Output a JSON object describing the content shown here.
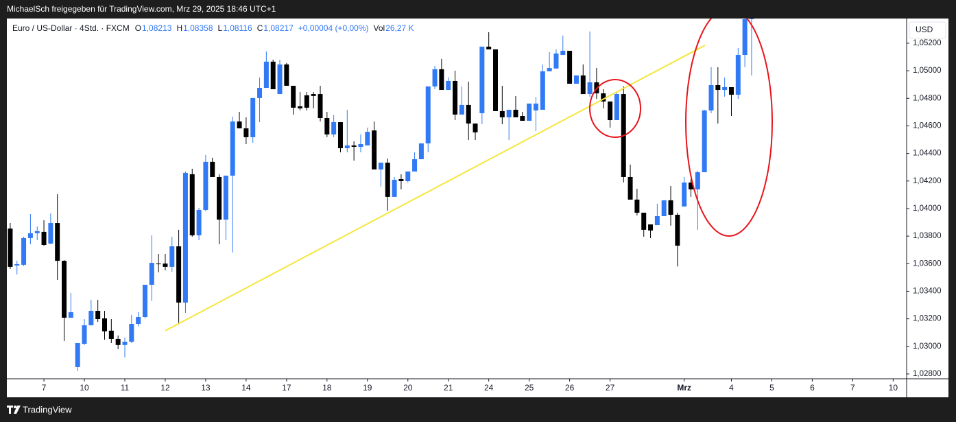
{
  "header": {
    "text": "MichaelSch freigegeben für TradingView.com, Mrz 29, 2025 18:46 UTC+1"
  },
  "legend": {
    "symbol": "Euro / US-Dollar · 4Std. · FXCM",
    "items": [
      {
        "label": "O",
        "value": "1,08213"
      },
      {
        "label": "H",
        "value": "1,08358"
      },
      {
        "label": "L",
        "value": "1,08116"
      },
      {
        "label": "C",
        "value": "1,08217"
      },
      {
        "label": "",
        "value": "+0,00004 (+0,00%)"
      },
      {
        "label": "Vol",
        "value": "26,27 K"
      }
    ]
  },
  "currency": "USD",
  "footer": {
    "brand": "TradingView"
  },
  "chart_data": {
    "type": "candlestick",
    "up_color": "#3179f5",
    "down_color": "#000000",
    "xlim": [
      -0.5,
      133
    ],
    "ylim": [
      1.02765,
      1.05379
    ],
    "xticks": [
      {
        "value": 5,
        "label": "7"
      },
      {
        "value": 11,
        "label": "10"
      },
      {
        "value": 17,
        "label": "11"
      },
      {
        "value": 23,
        "label": "12"
      },
      {
        "value": 29,
        "label": "13"
      },
      {
        "value": 35,
        "label": "14"
      },
      {
        "value": 41,
        "label": "17"
      },
      {
        "value": 47,
        "label": "18"
      },
      {
        "value": 53,
        "label": "19"
      },
      {
        "value": 59,
        "label": "20"
      },
      {
        "value": 65,
        "label": "21"
      },
      {
        "value": 71,
        "label": "24"
      },
      {
        "value": 77,
        "label": "25"
      },
      {
        "value": 83,
        "label": "26"
      },
      {
        "value": 89,
        "label": "27"
      },
      {
        "value": 100,
        "label": "Mrz"
      },
      {
        "value": 107,
        "label": "4"
      },
      {
        "value": 113,
        "label": "5"
      },
      {
        "value": 119,
        "label": "6"
      },
      {
        "value": 125,
        "label": "7"
      },
      {
        "value": 131,
        "label": "10"
      }
    ],
    "yticks": [
      {
        "value": 1.028,
        "label": "1,02800"
      },
      {
        "value": 1.03,
        "label": "1,03000"
      },
      {
        "value": 1.032,
        "label": "1,03200"
      },
      {
        "value": 1.034,
        "label": "1,03400"
      },
      {
        "value": 1.036,
        "label": "1,03600"
      },
      {
        "value": 1.038,
        "label": "1,03800"
      },
      {
        "value": 1.04,
        "label": "1,04000"
      },
      {
        "value": 1.042,
        "label": "1,04200"
      },
      {
        "value": 1.044,
        "label": "1,04400"
      },
      {
        "value": 1.046,
        "label": "1,04600"
      },
      {
        "value": 1.048,
        "label": "1,04800"
      },
      {
        "value": 1.05,
        "label": "1,05000"
      },
      {
        "value": 1.052,
        "label": "1,05200"
      }
    ],
    "open": [
      1.03855,
      1.03587,
      1.03592,
      1.03786,
      1.03821,
      1.03831,
      1.03746,
      1.03895,
      1.03621,
      1.03208,
      1.0285,
      1.03019,
      1.03153,
      1.03258,
      1.03203,
      1.03114,
      1.03054,
      1.0301,
      1.03034,
      1.03163,
      1.03213,
      1.03447,
      1.03601,
      1.03601,
      1.03577,
      1.03726,
      1.03318,
      1.04249,
      1.03806,
      1.0399,
      1.04339,
      1.04229,
      1.0392,
      1.04239,
      1.04632,
      1.04582,
      1.04518,
      1.04802,
      1.04876,
      1.05066,
      1.04831,
      1.05046,
      1.04891,
      1.04742,
      1.04822,
      1.04831,
      1.04831,
      1.04657,
      1.04538,
      1.04627,
      1.04438,
      1.04458,
      1.04448,
      1.04458,
      1.04567,
      1.04284,
      1.04333,
      1.04085,
      1.04214,
      1.04199,
      1.04269,
      1.04358,
      1.04473,
      1.04886,
      1.05011,
      1.04861,
      1.04926,
      1.04682,
      1.04752,
      1.04617,
      1.04692,
      1.05175,
      1.05155,
      1.04707,
      1.04662,
      1.04717,
      1.04672,
      1.04637,
      1.04712,
      1.04717,
      1.04996,
      1.05016,
      1.05115,
      1.05145,
      1.04906,
      1.04966,
      1.04831,
      1.04916,
      1.04836,
      1.04777,
      1.04642,
      1.04831,
      1.04229,
      1.04065,
      1.0397,
      1.03885,
      1.0388,
      1.03945,
      1.0406,
      1.03955,
      1.04015,
      1.04189,
      1.04139,
      1.04264,
      1.04712,
      1.04896,
      1.04861,
      1.04881,
      1.04826,
      1.05115,
      1.05374
    ],
    "high": [
      1.03895,
      1.03622,
      1.03796,
      1.0396,
      1.0387,
      1.03915,
      1.03965,
      1.04104,
      1.03626,
      1.03387,
      1.03024,
      1.03198,
      1.03338,
      1.03338,
      1.03258,
      1.03198,
      1.03079,
      1.03064,
      1.03228,
      1.03248,
      1.03447,
      1.03806,
      1.03671,
      1.03671,
      1.03796,
      1.03846,
      1.04269,
      1.04289,
      1.04005,
      1.04389,
      1.04369,
      1.04249,
      1.04239,
      1.04667,
      1.04702,
      1.04662,
      1.04802,
      1.04951,
      1.0514,
      1.05081,
      1.0508,
      1.05056,
      1.04891,
      1.04846,
      1.04846,
      1.04846,
      1.04891,
      1.04702,
      1.04677,
      1.04627,
      1.04717,
      1.04488,
      1.04538,
      1.04587,
      1.04632,
      1.04333,
      1.04363,
      1.04229,
      1.04249,
      1.04269,
      1.04408,
      1.04473,
      1.04886,
      1.05036,
      1.05086,
      1.04951,
      1.05001,
      1.04886,
      1.04921,
      1.04617,
      1.05175,
      1.0528,
      1.05155,
      1.04891,
      1.04717,
      1.04816,
      1.04702,
      1.04762,
      1.04811,
      1.05046,
      1.05135,
      1.05155,
      1.05255,
      1.05145,
      1.04966,
      1.05046,
      1.05285,
      1.05021,
      1.04866,
      1.04777,
      1.04851,
      1.04886,
      1.04319,
      1.04144,
      1.0397,
      1.03885,
      1.04035,
      1.0406,
      1.04164,
      1.0397,
      1.04229,
      1.04214,
      1.04274,
      1.04717,
      1.05026,
      1.05026,
      1.04951,
      1.04881,
      1.05165,
      1.05379,
      1.05379
    ],
    "low": [
      1.03562,
      1.03522,
      1.03582,
      1.03741,
      1.03771,
      1.0373,
      1.03741,
      1.03482,
      1.03039,
      1.03208,
      1.0282,
      1.03009,
      1.03153,
      1.03178,
      1.03049,
      1.03024,
      1.0298,
      1.0292,
      1.03024,
      1.03144,
      1.03203,
      1.0333,
      1.03537,
      1.03552,
      1.03542,
      1.03159,
      1.03243,
      1.03796,
      1.03771,
      1.0398,
      1.04229,
      1.03741,
      1.03771,
      1.03681,
      1.04582,
      1.04468,
      1.04478,
      1.04627,
      1.04876,
      1.04866,
      1.04831,
      1.04891,
      1.04682,
      1.04712,
      1.04712,
      1.04727,
      1.04632,
      1.04518,
      1.04518,
      1.04408,
      1.04408,
      1.04348,
      1.04408,
      1.04458,
      1.04284,
      1.04159,
      1.03985,
      1.04085,
      1.04139,
      1.04189,
      1.04269,
      1.04358,
      1.04408,
      1.04866,
      1.04861,
      1.04861,
      1.04642,
      1.04682,
      1.04498,
      1.04498,
      1.04612,
      1.05155,
      1.04707,
      1.04612,
      1.04498,
      1.04662,
      1.04637,
      1.04637,
      1.04563,
      1.04717,
      1.04996,
      1.05016,
      1.05115,
      1.04906,
      1.04906,
      1.04831,
      1.04811,
      1.04796,
      1.04727,
      1.04587,
      1.04642,
      1.04189,
      1.04065,
      1.0395,
      1.03796,
      1.03786,
      1.0388,
      1.03945,
      1.03876,
      1.0358,
      1.04015,
      1.04085,
      1.03846,
      1.04264,
      1.04692,
      1.04617,
      1.04812,
      1.04672,
      1.04796,
      1.05026,
      1.04966
    ],
    "close": [
      1.03577,
      1.03597,
      1.03786,
      1.03821,
      1.03836,
      1.03736,
      1.03895,
      1.03621,
      1.03208,
      1.03248,
      1.03024,
      1.03153,
      1.03258,
      1.03198,
      1.03109,
      1.03054,
      1.0301,
      1.03034,
      1.03163,
      1.03213,
      1.03447,
      1.03606,
      1.03596,
      1.03577,
      1.03726,
      1.03318,
      1.04259,
      1.03806,
      1.0399,
      1.04339,
      1.04229,
      1.0392,
      1.04239,
      1.04632,
      1.04582,
      1.04518,
      1.04802,
      1.04876,
      1.05066,
      1.04866,
      1.05046,
      1.04891,
      1.04732,
      1.04727,
      1.04732,
      1.04817,
      1.04657,
      1.04538,
      1.04627,
      1.04438,
      1.04458,
      1.04448,
      1.04468,
      1.04557,
      1.04284,
      1.04333,
      1.04085,
      1.04209,
      1.04199,
      1.04269,
      1.04358,
      1.04473,
      1.04886,
      1.05011,
      1.04861,
      1.04926,
      1.04682,
      1.04752,
      1.04617,
      1.04553,
      1.05175,
      1.05155,
      1.04707,
      1.04662,
      1.04717,
      1.04662,
      1.04637,
      1.04762,
      1.04762,
      1.04996,
      1.0502,
      1.05125,
      1.05145,
      1.04906,
      1.04966,
      1.04831,
      1.04916,
      1.04836,
      1.04777,
      1.04642,
      1.04831,
      1.04229,
      1.04065,
      1.0397,
      1.03846,
      1.03841,
      1.03945,
      1.0406,
      1.03955,
      1.03731,
      1.04189,
      1.04139,
      1.04264,
      1.04712,
      1.04896,
      1.04861,
      1.04881,
      1.04826,
      1.05115,
      1.05374,
      1.05379
    ]
  }
}
